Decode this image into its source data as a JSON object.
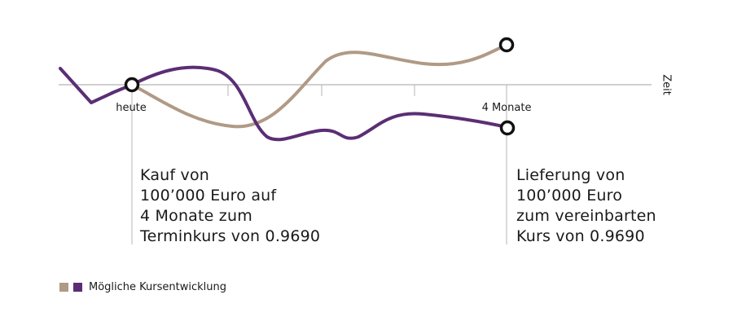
{
  "colors": {
    "tan": "#b09a86",
    "purple": "#5b2e74",
    "axis": "#b5b5b5",
    "marker": "#111111"
  },
  "axis": {
    "title": "Zeit",
    "tick_start": "heute",
    "tick_end": "4 Monate"
  },
  "annotations": {
    "left": [
      "Kauf von",
      "100’000 Euro auf",
      "4 Monate zum",
      "Terminkurs von 0.9690"
    ],
    "right": [
      "Lieferung von",
      "100’000 Euro",
      "zum vereinbarten",
      "Kurs von 0.9690"
    ]
  },
  "legend": {
    "label": "Mögliche Kursentwicklung",
    "swatch_colors": [
      "#b09a86",
      "#5b2e74"
    ]
  }
}
